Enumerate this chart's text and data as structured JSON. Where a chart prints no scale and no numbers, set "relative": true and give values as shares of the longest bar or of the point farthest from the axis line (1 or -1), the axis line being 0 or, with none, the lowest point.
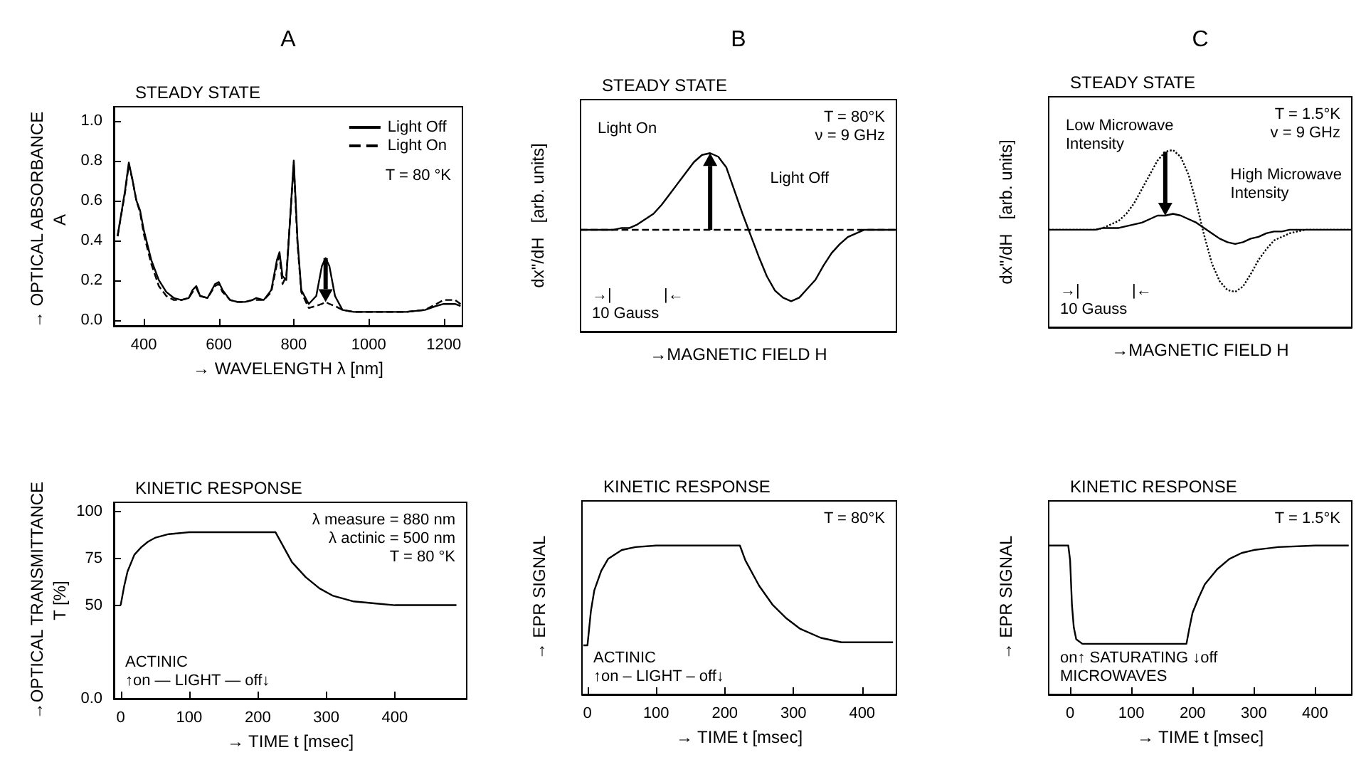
{
  "chart_data": [
    {
      "type": "line",
      "title": "A",
      "subtitle": "STEADY STATE",
      "xlabel": "→ WAVELENGTH λ [nm]",
      "ylabel": "→ OPTICAL ABSORBANCE\nA",
      "x": [
        330,
        350,
        360,
        370,
        380,
        390,
        400,
        420,
        440,
        460,
        480,
        500,
        520,
        530,
        540,
        550,
        570,
        590,
        600,
        610,
        630,
        650,
        670,
        690,
        700,
        720,
        740,
        755,
        762,
        770,
        780,
        790,
        800,
        810,
        820,
        840,
        860,
        875,
        885,
        895,
        910,
        930,
        960,
        1000,
        1050,
        1100,
        1150,
        1180,
        1200,
        1230,
        1245
      ],
      "series": [
        {
          "name": "Light Off",
          "color": "#000000",
          "line_style": "solid",
          "values": [
            0.42,
            0.65,
            0.79,
            0.7,
            0.6,
            0.55,
            0.45,
            0.3,
            0.2,
            0.14,
            0.11,
            0.1,
            0.11,
            0.15,
            0.17,
            0.12,
            0.11,
            0.18,
            0.19,
            0.15,
            0.1,
            0.09,
            0.09,
            0.1,
            0.11,
            0.1,
            0.15,
            0.3,
            0.34,
            0.22,
            0.2,
            0.5,
            0.8,
            0.4,
            0.15,
            0.08,
            0.12,
            0.27,
            0.31,
            0.27,
            0.12,
            0.05,
            0.04,
            0.04,
            0.04,
            0.04,
            0.05,
            0.07,
            0.08,
            0.08,
            0.07
          ]
        },
        {
          "name": "Light On",
          "color": "#000000",
          "line_style": "dashed",
          "values": [
            0.42,
            0.64,
            0.78,
            0.7,
            0.6,
            0.54,
            0.43,
            0.28,
            0.17,
            0.12,
            0.1,
            0.1,
            0.11,
            0.14,
            0.16,
            0.12,
            0.11,
            0.17,
            0.18,
            0.14,
            0.1,
            0.09,
            0.09,
            0.1,
            0.1,
            0.1,
            0.14,
            0.28,
            0.32,
            0.18,
            0.22,
            0.5,
            0.78,
            0.38,
            0.14,
            0.06,
            0.07,
            0.08,
            0.09,
            0.08,
            0.07,
            0.05,
            0.04,
            0.04,
            0.04,
            0.04,
            0.05,
            0.08,
            0.1,
            0.1,
            0.08
          ]
        }
      ],
      "xlim": [
        320,
        1250
      ],
      "xticks": [
        400,
        600,
        800,
        1000,
        1200
      ],
      "ylim": [
        -0.03,
        1.07
      ],
      "yticks": [
        {
          "value": 0,
          "label": "0.0"
        },
        {
          "value": 0.2,
          "label": "0.2"
        },
        {
          "value": 0.4,
          "label": "0.4"
        },
        {
          "value": 0.6,
          "label": "0.6"
        },
        {
          "value": 0.8,
          "label": "0.8"
        },
        {
          "value": 1,
          "label": "1.0"
        }
      ],
      "legend": "top right",
      "grid": false,
      "annotations": [
        "T = 80 °K"
      ]
    },
    {
      "type": "line",
      "title": "B",
      "subtitle": "STEADY STATE",
      "xlabel": "→MAGNETIC FIELD H",
      "ylabel": "dx\"/dH   [arb. units]",
      "relative": true,
      "tick_labels": false,
      "grid": false,
      "categories": [
        null,
        null,
        null,
        null,
        null,
        null,
        null,
        null,
        null,
        null,
        null,
        null,
        null,
        null,
        null,
        null,
        null,
        null,
        null,
        null,
        null,
        null,
        null,
        null,
        null,
        null,
        null,
        null,
        null,
        null,
        null,
        null,
        null,
        null,
        null,
        null,
        null,
        null,
        null,
        null
      ],
      "series": [
        {
          "color": "#000000",
          "line_style": "dashed",
          "values": [
            0.57,
            0.57,
            0.57,
            0.57,
            0.57,
            0.57,
            0.57,
            0.57,
            0.57,
            0.57,
            0.57,
            0.57,
            0.57,
            0.57,
            0.57,
            0.57,
            0.57,
            0.57,
            0.57,
            0.57,
            0.57,
            0.57,
            0.57,
            0.57,
            0.57,
            0.57,
            0.57,
            0.57,
            0.57,
            0.57,
            0.57,
            0.57,
            0.57,
            0.57,
            0.57,
            0.57,
            0.57,
            0.57,
            0.57,
            0.57
          ]
        },
        {
          "color": "#000000",
          "line_style": "solid",
          "values": [
            0.57,
            0.57,
            0.57,
            0.57,
            0.57,
            0.58,
            0.58,
            0.6,
            0.63,
            0.66,
            0.71,
            0.77,
            0.83,
            0.89,
            0.95,
            0.99,
            1,
            0.98,
            0.92,
            0.79,
            0.66,
            0.54,
            0.42,
            0.31,
            0.23,
            0.19,
            0.17,
            0.19,
            0.24,
            0.29,
            0.37,
            0.44,
            0.49,
            0.53,
            0.55,
            0.57,
            0.57,
            0.57,
            0.57,
            0.57
          ]
        }
      ],
      "annotations": [
        "T = 80°K\nν = 9 GHz",
        "→|            |←\n10 Gauss",
        "Light On",
        "Light Off"
      ]
    },
    {
      "type": "line",
      "title": "C",
      "subtitle": "STEADY STATE",
      "xlabel": "→MAGNETIC FIELD H",
      "ylabel": "dx\"/dH   [arb. units]",
      "relative": true,
      "tick_labels": false,
      "grid": false,
      "categories": [
        null,
        null,
        null,
        null,
        null,
        null,
        null,
        null,
        null,
        null,
        null,
        null,
        null,
        null,
        null,
        null,
        null,
        null,
        null,
        null,
        null,
        null,
        null,
        null,
        null,
        null,
        null,
        null,
        null,
        null,
        null,
        null,
        null,
        null,
        null,
        null,
        null,
        null,
        null,
        null
      ],
      "series": [
        {
          "color": "#000000",
          "line_style": "dotted",
          "values": [
            0.55,
            0.55,
            0.55,
            0.55,
            0.55,
            0.55,
            0.55,
            0.56,
            0.58,
            0.6,
            0.64,
            0.7,
            0.78,
            0.86,
            0.94,
            0.99,
            1,
            0.96,
            0.86,
            0.7,
            0.52,
            0.36,
            0.26,
            0.21,
            0.2,
            0.23,
            0.3,
            0.38,
            0.44,
            0.49,
            0.51,
            0.53,
            0.54,
            0.55,
            0.55,
            0.55,
            0.55,
            0.55,
            0.55,
            0.55
          ]
        },
        {
          "color": "#000000",
          "line_style": "solid",
          "values": [
            0.55,
            0.55,
            0.55,
            0.55,
            0.55,
            0.55,
            0.55,
            0.56,
            0.56,
            0.56,
            0.57,
            0.58,
            0.59,
            0.61,
            0.63,
            0.63,
            0.64,
            0.63,
            0.61,
            0.59,
            0.56,
            0.53,
            0.5,
            0.48,
            0.47,
            0.48,
            0.5,
            0.51,
            0.53,
            0.54,
            0.54,
            0.55,
            0.55,
            0.55,
            0.55,
            0.55,
            0.55,
            0.55,
            0.55,
            0.55
          ]
        }
      ],
      "annotations": [
        "T = 1.5°K\nv = 9 GHz",
        "→|            |←\n10 Gauss",
        "Low Microwave\nIntensity",
        "High Microwave\nIntensity"
      ]
    },
    {
      "type": "line",
      "title": "KINETIC RESPONSE",
      "xlabel": "→ TIME t [msec]",
      "ylabel": "→OPTICAL TRANSMITTANCE\nT [%]",
      "grid": false,
      "x": [
        0,
        5,
        10,
        20,
        30,
        40,
        50,
        70,
        100,
        226,
        235,
        250,
        270,
        290,
        310,
        340,
        370,
        400,
        490
      ],
      "series": [
        {
          "color": "#000000",
          "values": [
            50,
            60,
            68,
            77,
            81,
            84,
            86,
            88,
            89,
            89,
            83,
            73,
            65,
            59,
            55,
            52,
            51,
            50,
            50
          ]
        }
      ],
      "xlim": [
        -10,
        505
      ],
      "xticks": [
        0,
        100,
        200,
        300,
        400
      ],
      "ylim": [
        0,
        105
      ],
      "yticks": [
        {
          "value": 0,
          "label": "0.0"
        },
        50,
        75,
        100
      ],
      "annotations": [
        "λ measure = 880 nm\nλ actinic = 500 nm\nT = 80 °K",
        "ACTINIC\n↑on — LIGHT — off↓"
      ]
    },
    {
      "type": "line",
      "title": "KINETIC RESPONSE",
      "xlabel": "→ TIME t [msec]",
      "ylabel": "→ EPR SIGNAL",
      "relative": true,
      "tick_labels": "x",
      "grid": false,
      "x": [
        -6,
        0,
        5,
        10,
        20,
        30,
        50,
        70,
        100,
        222,
        230,
        250,
        270,
        290,
        310,
        340,
        370,
        400,
        445
      ],
      "series": [
        {
          "color": "#000000",
          "values": [
            0.33,
            0.33,
            0.56,
            0.7,
            0.83,
            0.91,
            0.97,
            0.99,
            1,
            1,
            0.9,
            0.73,
            0.6,
            0.51,
            0.44,
            0.38,
            0.35,
            0.35,
            0.35
          ]
        }
      ],
      "xlim": [
        -8,
        450
      ],
      "xticks": [
        0,
        100,
        200,
        300,
        400
      ],
      "annotations": [
        "T = 80°K",
        "ACTINIC\n↑on – LIGHT – off↓"
      ]
    },
    {
      "type": "line",
      "title": "KINETIC RESPONSE",
      "xlabel": "→ TIME t [msec]",
      "ylabel": "→ EPR SIGNAL",
      "relative": true,
      "tick_labels": "x",
      "grid": false,
      "x": [
        -35,
        -3,
        0,
        3,
        6,
        10,
        20,
        50,
        100,
        190,
        195,
        200,
        210,
        220,
        240,
        260,
        280,
        300,
        340,
        400,
        455
      ],
      "series": [
        {
          "color": "#000000",
          "values": [
            1,
            1,
            0.9,
            0.6,
            0.45,
            0.37,
            0.34,
            0.34,
            0.34,
            0.34,
            0.45,
            0.55,
            0.65,
            0.74,
            0.84,
            0.91,
            0.95,
            0.97,
            0.99,
            1,
            1
          ]
        }
      ],
      "xlim": [
        -35,
        460
      ],
      "xticks": [
        0,
        100,
        200,
        300,
        400
      ],
      "annotations": [
        "T = 1.5°K",
        "on↑ SATURATING ↓off\nMICROWAVES"
      ]
    }
  ]
}
